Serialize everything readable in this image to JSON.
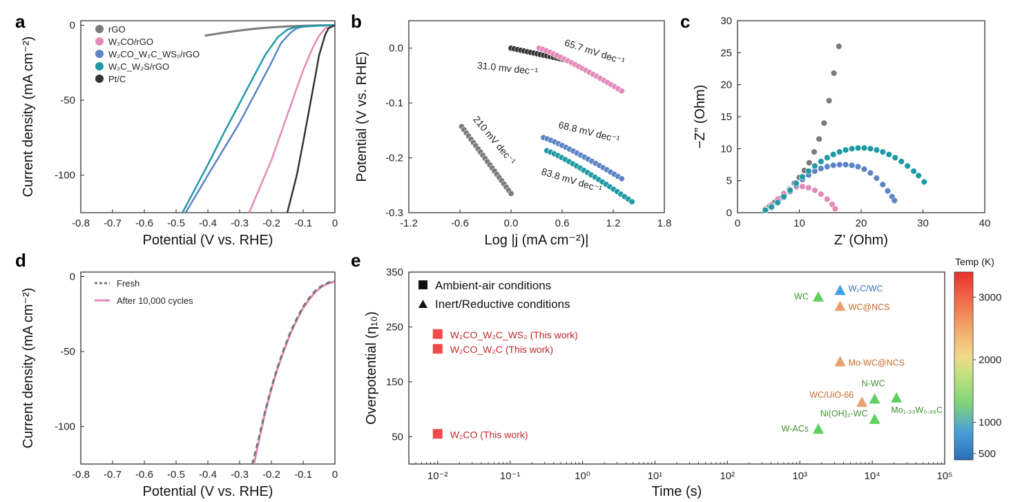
{
  "panels": {
    "a": "a",
    "b": "b",
    "c": "c",
    "d": "d",
    "e": "e"
  },
  "colors": {
    "rGO": "#7a7a7a",
    "W2CO/rGO": "#e48ab8",
    "W2CO_W2C_WS2/rGO": "#5b84c4",
    "W2C_W2S/rGO": "#1f9aa5",
    "Pt/C": "#333333",
    "red": "#f04a4a",
    "green": "#5fcf5f",
    "orange": "#e8a070",
    "blue": "#3fa4e6",
    "green_text": "#3f8f2f",
    "orange_text": "#c46a2a",
    "blue_text": "#3a6fbf",
    "red_text": "#c0282c"
  },
  "chart_data": [
    {
      "id": "a",
      "type": "line",
      "xlabel": "Potential (V vs. RHE)",
      "ylabel": "Current density (mA cm⁻²)",
      "xlim": [
        -0.8,
        0.0
      ],
      "ylim": [
        -125,
        3
      ],
      "xticks": [
        "-0.8",
        "-0.7",
        "-0.6",
        "-0.5",
        "-0.4",
        "-0.3",
        "-0.2",
        "-0.1",
        "0"
      ],
      "yticks": [
        "0",
        "-50",
        "-100"
      ],
      "legend": [
        "rGO",
        "W₂CO/rGO",
        "W₂CO_W₂C_WS₂/rGO",
        "W₂C_W₂S/rGO",
        "Pt/C"
      ],
      "series": [
        {
          "name": "rGO",
          "x": [
            -0.41,
            -0.35,
            -0.3,
            -0.25,
            -0.2,
            -0.15,
            -0.1,
            -0.05,
            0.0
          ],
          "y": [
            -7,
            -5,
            -3.5,
            -2.3,
            -1.4,
            -0.8,
            -0.4,
            -0.15,
            0
          ]
        },
        {
          "name": "W2CO/rGO",
          "x": [
            -0.27,
            -0.24,
            -0.2,
            -0.15,
            -0.1,
            -0.07,
            -0.05,
            -0.03,
            0.0
          ],
          "y": [
            -125,
            -110,
            -90,
            -60,
            -30,
            -15,
            -7,
            -2,
            0
          ]
        },
        {
          "name": "W2CO_W2C_WS2/rGO",
          "x": [
            -0.47,
            -0.4,
            -0.3,
            -0.25,
            -0.2,
            -0.17,
            -0.14,
            -0.12,
            -0.1,
            -0.05,
            0.0
          ],
          "y": [
            -125,
            -100,
            -65,
            -45,
            -25,
            -12,
            -5,
            -2,
            -1,
            -0.3,
            0
          ]
        },
        {
          "name": "W2C_W2S/rGO",
          "x": [
            -0.48,
            -0.4,
            -0.35,
            -0.3,
            -0.25,
            -0.22,
            -0.18,
            -0.15,
            -0.12,
            -0.05,
            0.0
          ],
          "y": [
            -125,
            -93,
            -72,
            -52,
            -32,
            -20,
            -8,
            -3,
            -1,
            -0.2,
            0
          ]
        },
        {
          "name": "Pt/C",
          "x": [
            -0.15,
            -0.12,
            -0.1,
            -0.08,
            -0.06,
            -0.05,
            -0.03,
            -0.02,
            0.0
          ],
          "y": [
            -125,
            -100,
            -78,
            -55,
            -32,
            -20,
            -6,
            -2,
            0
          ]
        }
      ]
    },
    {
      "id": "b",
      "type": "scatter",
      "xlabel": "Log |j (mA cm⁻²)|",
      "ylabel": "Potential (V vs. RHE)",
      "xlim": [
        -1.2,
        1.8
      ],
      "ylim": [
        -0.3,
        0.05
      ],
      "xticks": [
        "-1.2",
        "-0.6",
        "0.0",
        "0.6",
        "1.2",
        "1.8"
      ],
      "yticks": [
        "0.0",
        "-0.1",
        "-0.2",
        "-0.3"
      ],
      "annotations": [
        "65.7 mV dec⁻¹",
        "31.0 mv dec⁻¹",
        "210 mV dec⁻¹",
        "68.8 mV dec⁻¹",
        "83.8 mV dec⁻¹"
      ],
      "series": [
        {
          "name": "Pt/C",
          "x0": 0.0,
          "x1": 0.65,
          "y0": 0.0,
          "y1": -0.022,
          "n": 18
        },
        {
          "name": "W2CO/rGO",
          "x0": 0.33,
          "x1": 1.3,
          "y0": 0.0,
          "y1": -0.078,
          "n": 24
        },
        {
          "name": "rGO",
          "x0": -0.58,
          "x1": 0.0,
          "y0": -0.143,
          "y1": -0.265,
          "n": 22
        },
        {
          "name": "W2CO_W2C_WS2/rGO",
          "x0": 0.38,
          "x1": 1.3,
          "y0": -0.163,
          "y1": -0.238,
          "n": 22
        },
        {
          "name": "W2C_W2S/rGO",
          "x0": 0.42,
          "x1": 1.42,
          "y0": -0.187,
          "y1": -0.28,
          "n": 24
        }
      ]
    },
    {
      "id": "c",
      "type": "scatter",
      "xlabel": "Z’ (Ohm)",
      "ylabel": "−Z” (Ohm)",
      "xlim": [
        0,
        40
      ],
      "ylim": [
        0,
        30
      ],
      "xticks": [
        "0",
        "10",
        "20",
        "30",
        "40"
      ],
      "yticks": [
        "0",
        "5",
        "10",
        "15",
        "20",
        "25",
        "30"
      ],
      "series": [
        {
          "name": "rGO",
          "x": [
            4.5,
            5.2,
            6.0,
            6.8,
            7.6,
            8.4,
            9.2,
            10.0,
            10.8,
            11.6,
            12.4,
            13.2,
            14.0,
            14.8,
            15.6,
            16.4
          ],
          "y": [
            0.6,
            1.0,
            1.6,
            2.2,
            2.9,
            3.7,
            4.6,
            5.5,
            6.6,
            7.8,
            9.5,
            11.5,
            14.0,
            17.5,
            21.8,
            26.0
          ]
        },
        {
          "name": "W2CO/rGO",
          "x": [
            4.5,
            5.5,
            6.5,
            7.5,
            8.5,
            9.5,
            10.5,
            11.5,
            12.5,
            13.5,
            14.5,
            15.3,
            15.8
          ],
          "y": [
            0.5,
            1.2,
            2.1,
            3.0,
            3.6,
            4.0,
            4.1,
            3.9,
            3.5,
            2.9,
            2.1,
            1.3,
            0.6
          ]
        },
        {
          "name": "W2CO_W2C_WS2/rGO",
          "x": [
            4.6,
            5.5,
            6.5,
            7.5,
            8.5,
            9.5,
            10.5,
            11.5,
            12.5,
            13.5,
            14.5,
            15.5,
            16.5,
            17.5,
            18.5,
            19.5,
            20.5,
            21.5,
            22.5,
            23.5,
            24.3,
            25.0,
            25.4
          ],
          "y": [
            0.4,
            0.8,
            1.5,
            2.4,
            3.3,
            4.3,
            5.2,
            5.9,
            6.5,
            6.9,
            7.2,
            7.4,
            7.5,
            7.5,
            7.4,
            7.2,
            6.8,
            6.2,
            5.4,
            4.4,
            3.4,
            2.5,
            1.9
          ]
        },
        {
          "name": "W2C_W2S/rGO",
          "x": [
            4.5,
            5.5,
            6.5,
            7.5,
            8.5,
            9.5,
            10.5,
            11.5,
            12.5,
            13.5,
            14.5,
            15.5,
            16.5,
            17.5,
            18.5,
            19.5,
            20.5,
            21.5,
            22.5,
            23.5,
            24.5,
            25.5,
            26.5,
            27.5,
            28.5,
            29.3,
            30.2
          ],
          "y": [
            0.4,
            0.9,
            1.6,
            2.5,
            3.5,
            4.6,
            5.6,
            6.5,
            7.3,
            8.0,
            8.6,
            9.1,
            9.5,
            9.8,
            10.0,
            10.1,
            10.1,
            10.0,
            9.8,
            9.5,
            9.1,
            8.6,
            8.0,
            7.3,
            6.5,
            5.8,
            4.8
          ]
        }
      ]
    },
    {
      "id": "d",
      "type": "line",
      "xlabel": "Potential (V vs. RHE)",
      "ylabel": "Current density (mA cm⁻²)",
      "xlim": [
        -0.8,
        0.0
      ],
      "ylim": [
        -125,
        3
      ],
      "xticks": [
        "-0.8",
        "-0.7",
        "-0.6",
        "-0.5",
        "-0.4",
        "-0.3",
        "-0.2",
        "-0.1",
        "0"
      ],
      "yticks": [
        "0",
        "-50",
        "-100"
      ],
      "legend": [
        "Fresh",
        "After 10,000 cycles"
      ],
      "series": [
        {
          "name": "Fresh",
          "x": [
            -0.26,
            -0.24,
            -0.22,
            -0.2,
            -0.18,
            -0.16,
            -0.14,
            -0.12,
            -0.1,
            -0.08,
            -0.06,
            -0.04,
            -0.02,
            0.0
          ],
          "y": [
            -125,
            -108,
            -90,
            -74,
            -60,
            -48,
            -37,
            -28,
            -20,
            -14,
            -9,
            -6,
            -4,
            -3
          ]
        },
        {
          "name": "After 10,000 cycles",
          "x": [
            -0.255,
            -0.24,
            -0.22,
            -0.2,
            -0.18,
            -0.16,
            -0.14,
            -0.12,
            -0.1,
            -0.08,
            -0.06,
            -0.04,
            -0.02,
            0.0
          ],
          "y": [
            -125,
            -110,
            -91,
            -75,
            -61,
            -49,
            -38,
            -29,
            -21,
            -15,
            -10,
            -6.5,
            -4.5,
            -3.5
          ]
        }
      ]
    },
    {
      "id": "e",
      "type": "scatter",
      "xlabel": "Time (s)",
      "ylabel": "Overpotential (η₁₀)",
      "xscale": "log",
      "xlim": [
        0.004,
        100000
      ],
      "ylim": [
        0,
        350
      ],
      "xticks": [
        "10⁻²",
        "10⁻¹",
        "10⁰",
        "10¹",
        "10²",
        "10³",
        "10⁴",
        "10⁵"
      ],
      "yticks": [
        "50",
        "150",
        "250",
        "350"
      ],
      "legend": [
        "Ambient-air conditions",
        "Inert/Reductive conditions"
      ],
      "colorbar": {
        "label": "Temp (K)",
        "ticks": [
          "500",
          "1000",
          "2000",
          "3000"
        ],
        "range": [
          400,
          3400
        ]
      },
      "points": [
        {
          "label": "W₂CO_W₂C_WS₂ (This work)",
          "x": 0.01,
          "y": 237,
          "marker": "square",
          "color": "red"
        },
        {
          "label": "W₂CO_W₂C (This work)",
          "x": 0.01,
          "y": 210,
          "marker": "square",
          "color": "red"
        },
        {
          "label": "W₂CO (This work)",
          "x": 0.01,
          "y": 55,
          "marker": "square",
          "color": "red"
        },
        {
          "label": "WC",
          "x": 1800,
          "y": 305,
          "marker": "triangle",
          "color": "green"
        },
        {
          "label": "W₂C/WC",
          "x": 3600,
          "y": 317,
          "marker": "triangle",
          "color": "blue"
        },
        {
          "label": "WC@NCS",
          "x": 3600,
          "y": 288,
          "marker": "triangle",
          "color": "orange"
        },
        {
          "label": "Mo-WC@NCS",
          "x": 3600,
          "y": 187,
          "marker": "triangle",
          "color": "orange"
        },
        {
          "label": "N-WC",
          "x": 10800,
          "y": 119,
          "marker": "triangle",
          "color": "green"
        },
        {
          "label": "WC/UiO-66",
          "x": 7200,
          "y": 113,
          "marker": "triangle",
          "color": "orange"
        },
        {
          "label": "Mo₁.₃₃W₀.₆₆C",
          "x": 21600,
          "y": 121,
          "marker": "triangle",
          "color": "green"
        },
        {
          "label": "Ni(OH)₂-WC",
          "x": 10800,
          "y": 82,
          "marker": "triangle",
          "color": "green"
        },
        {
          "label": "W-ACs",
          "x": 1800,
          "y": 64,
          "marker": "triangle",
          "color": "green"
        }
      ]
    }
  ]
}
